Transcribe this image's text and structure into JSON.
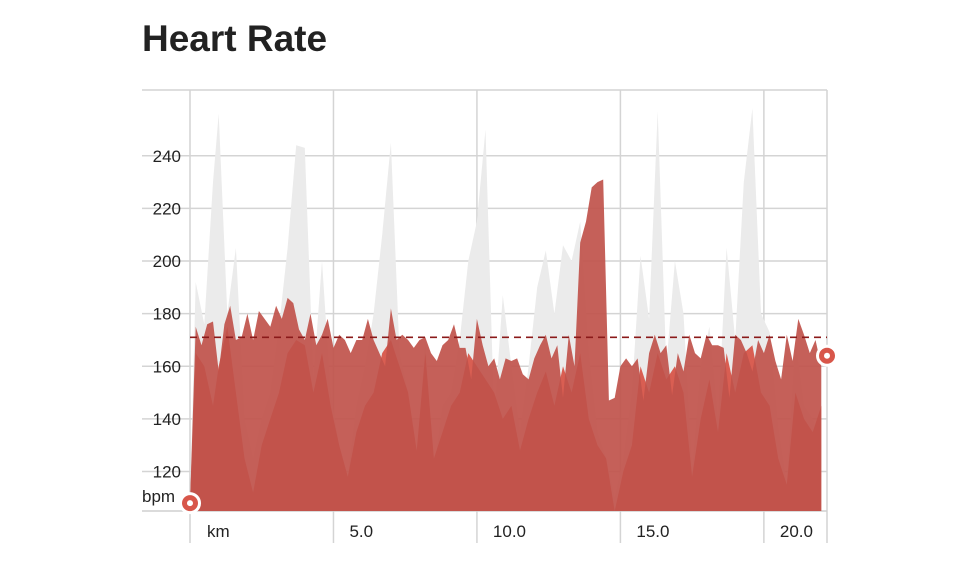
{
  "chart_data": {
    "type": "area",
    "title": "Heart Rate",
    "y_unit_label": "bpm",
    "x_unit_label": "km",
    "ylim": [
      105,
      265
    ],
    "xlim": [
      0,
      22.2
    ],
    "y_ticks": [
      120,
      140,
      160,
      180,
      200,
      220,
      240
    ],
    "y_tick_labels": [
      "120",
      "140",
      "160",
      "180",
      "200",
      "220",
      "240"
    ],
    "x_ticks": [
      5,
      10,
      15,
      20
    ],
    "x_tick_labels": [
      "5.0",
      "10.0",
      "15.0",
      "20.0"
    ],
    "grid": true,
    "reference_line": 171,
    "colors": {
      "primary_area": "#c0524b",
      "secondary_area": "#d8564a",
      "background_area": "#ebebeb",
      "reference_line": "#8b1a1a",
      "marker": "#d8564a"
    },
    "series": [
      {
        "role": "background",
        "x": [
          0,
          0.2,
          0.5,
          0.8,
          1.0,
          1.3,
          1.6,
          1.9,
          2.2,
          2.5,
          2.8,
          3.1,
          3.4,
          3.7,
          4.0,
          4.3,
          4.6,
          4.9,
          5.2,
          5.5,
          5.8,
          6.1,
          6.4,
          6.7,
          7.0,
          7.3,
          7.6,
          7.9,
          8.2,
          8.5,
          8.8,
          9.1,
          9.4,
          9.7,
          10.0,
          10.3,
          10.6,
          10.9,
          11.2,
          11.5,
          11.8,
          12.1,
          12.4,
          12.7,
          13.0,
          13.3,
          13.6,
          13.9,
          14.2,
          14.5,
          14.8,
          15.1,
          15.4,
          15.7,
          16.0,
          16.3,
          16.6,
          16.9,
          17.2,
          17.5,
          17.8,
          18.1,
          18.4,
          18.7,
          19.0,
          19.3,
          19.6,
          19.9,
          20.2,
          20.5,
          20.8,
          21.1,
          21.4,
          21.7,
          22.0
        ],
        "values": [
          108,
          192,
          176,
          230,
          256,
          180,
          205,
          140,
          125,
          140,
          150,
          175,
          205,
          244,
          243,
          155,
          200,
          150,
          130,
          118,
          145,
          160,
          180,
          210,
          245,
          165,
          150,
          125,
          170,
          120,
          145,
          150,
          170,
          200,
          215,
          250,
          140,
          187,
          160,
          135,
          160,
          190,
          204,
          180,
          206,
          200,
          215,
          165,
          135,
          125,
          110,
          125,
          150,
          202,
          178,
          257,
          160,
          200,
          180,
          120,
          160,
          175,
          140,
          205,
          170,
          230,
          258,
          180,
          173,
          137,
          115,
          170,
          145,
          140,
          130
        ]
      },
      {
        "role": "secondary",
        "x": [
          0,
          0.2,
          0.5,
          0.8,
          1.0,
          1.3,
          1.6,
          1.9,
          2.2,
          2.5,
          2.8,
          3.1,
          3.4,
          3.7,
          4.0,
          4.3,
          4.6,
          4.9,
          5.2,
          5.5,
          5.8,
          6.1,
          6.4,
          6.7,
          7.0,
          7.3,
          7.6,
          7.9,
          8.2,
          8.5,
          8.8,
          9.1,
          9.4,
          9.7,
          10.0,
          10.3,
          10.6,
          10.9,
          11.2,
          11.5,
          11.8,
          12.1,
          12.4,
          12.7,
          13.0,
          13.3,
          13.6,
          13.9,
          14.2,
          14.5,
          14.8,
          15.1,
          15.4,
          15.7,
          16.0,
          16.3,
          16.6,
          16.9,
          17.2,
          17.5,
          17.8,
          18.1,
          18.4,
          18.7,
          19.0,
          19.3,
          19.6,
          19.9,
          20.2,
          20.5,
          20.8,
          21.1,
          21.4,
          21.7,
          22.0
        ],
        "values": [
          108,
          165,
          160,
          145,
          160,
          175,
          150,
          125,
          112,
          130,
          140,
          150,
          165,
          170,
          168,
          150,
          165,
          145,
          130,
          118,
          135,
          145,
          150,
          165,
          170,
          160,
          150,
          128,
          165,
          125,
          135,
          145,
          150,
          165,
          160,
          155,
          150,
          140,
          145,
          128,
          140,
          150,
          158,
          145,
          160,
          150,
          165,
          140,
          130,
          125,
          105,
          120,
          130,
          160,
          150,
          165,
          155,
          160,
          150,
          118,
          140,
          155,
          135,
          165,
          150,
          165,
          168,
          150,
          145,
          125,
          115,
          150,
          140,
          135,
          145
        ]
      },
      {
        "role": "primary",
        "x": [
          0,
          0.2,
          0.4,
          0.6,
          0.8,
          1.0,
          1.2,
          1.4,
          1.6,
          1.8,
          2.0,
          2.2,
          2.4,
          2.6,
          2.8,
          3.0,
          3.2,
          3.4,
          3.6,
          3.8,
          4.0,
          4.2,
          4.4,
          4.6,
          4.8,
          5.0,
          5.2,
          5.4,
          5.6,
          5.8,
          6.0,
          6.2,
          6.4,
          6.6,
          6.8,
          7.0,
          7.2,
          7.4,
          7.6,
          7.8,
          8.0,
          8.2,
          8.4,
          8.6,
          8.8,
          9.0,
          9.2,
          9.4,
          9.6,
          9.8,
          10.0,
          10.2,
          10.4,
          10.6,
          10.8,
          11.0,
          11.2,
          11.4,
          11.6,
          11.8,
          12.0,
          12.2,
          12.4,
          12.6,
          12.8,
          13.0,
          13.2,
          13.4,
          13.6,
          13.8,
          14.0,
          14.2,
          14.4,
          14.6,
          14.8,
          15.0,
          15.2,
          15.4,
          15.6,
          15.8,
          16.0,
          16.2,
          16.4,
          16.6,
          16.8,
          17.0,
          17.2,
          17.4,
          17.6,
          17.8,
          18.0,
          18.2,
          18.4,
          18.6,
          18.8,
          19.0,
          19.2,
          19.4,
          19.6,
          19.8,
          20.0,
          20.2,
          20.4,
          20.6,
          20.8,
          21.0,
          21.2,
          21.4,
          21.6,
          21.8,
          22.0
        ],
        "values": [
          108,
          175,
          168,
          176,
          177,
          158,
          176,
          183,
          170,
          171,
          180,
          170,
          181,
          178,
          175,
          183,
          178,
          186,
          184,
          174,
          170,
          180,
          168,
          172,
          178,
          167,
          172,
          170,
          165,
          170,
          170,
          178,
          170,
          165,
          160,
          182,
          170,
          172,
          170,
          167,
          170,
          171,
          165,
          162,
          168,
          170,
          176,
          167,
          167,
          155,
          178,
          168,
          160,
          163,
          155,
          163,
          162,
          163,
          157,
          155,
          163,
          168,
          172,
          163,
          168,
          148,
          172,
          160,
          207,
          215,
          228,
          230,
          231,
          147,
          148,
          160,
          163,
          160,
          163,
          147,
          165,
          172,
          165,
          168,
          149,
          165,
          158,
          172,
          165,
          163,
          172,
          168,
          168,
          167,
          148,
          172,
          170,
          165,
          158,
          170,
          165,
          172,
          162,
          155,
          172,
          162,
          178,
          172,
          165,
          170,
          160
        ]
      }
    ],
    "markers": [
      {
        "x": 0,
        "y": 108
      },
      {
        "x": 22.2,
        "y": 164
      }
    ]
  }
}
